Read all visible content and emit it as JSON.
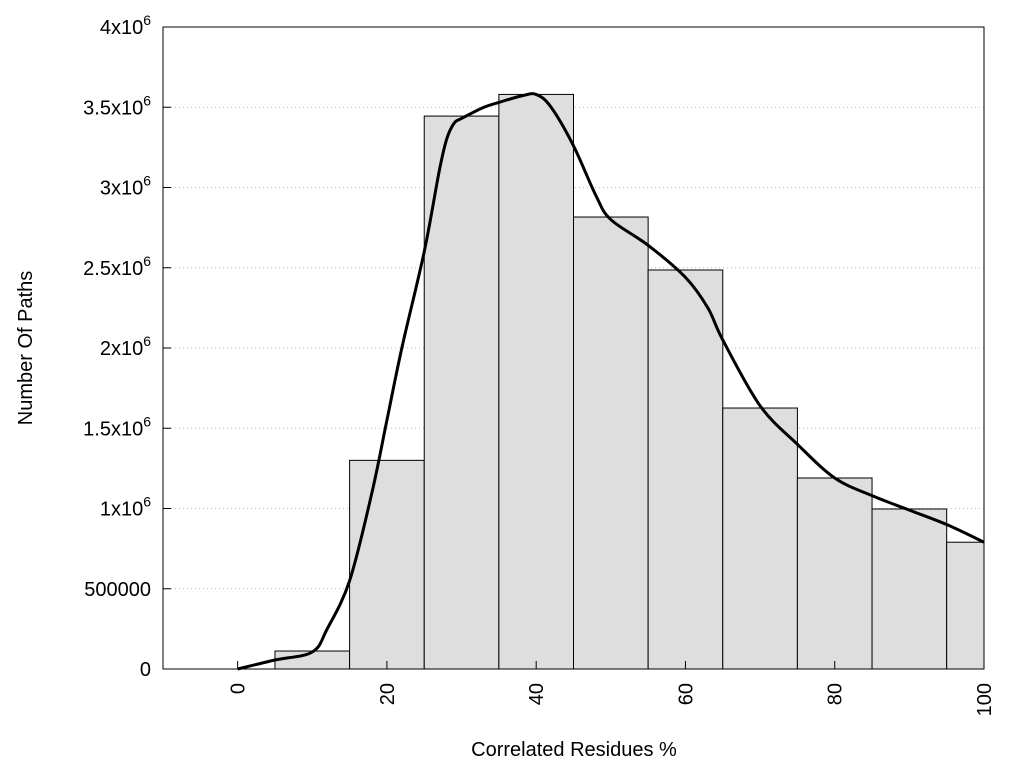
{
  "chart_data": {
    "type": "bar",
    "title": "",
    "xlabel": "Correlated Residues %",
    "ylabel": "Number Of Paths",
    "xlim": [
      -10,
      100
    ],
    "ylim": [
      0,
      4000000
    ],
    "grid": "horizontal dotted",
    "x_ticks": [
      0,
      20,
      40,
      60,
      80,
      100
    ],
    "x_tick_labels": [
      "0",
      "20",
      "40",
      "60",
      "80",
      "100"
    ],
    "y_ticks": [
      0,
      500000,
      1000000,
      1500000,
      2000000,
      2500000,
      3000000,
      3500000,
      4000000
    ],
    "y_tick_labels": [
      {
        "base": "0",
        "exp": ""
      },
      {
        "base": "500000",
        "exp": ""
      },
      {
        "base": "1x10",
        "exp": "6"
      },
      {
        "base": "1.5x10",
        "exp": "6"
      },
      {
        "base": "2x10",
        "exp": "6"
      },
      {
        "base": "2.5x10",
        "exp": "6"
      },
      {
        "base": "3x10",
        "exp": "6"
      },
      {
        "base": "3.5x10",
        "exp": "6"
      },
      {
        "base": "4x10",
        "exp": "6"
      }
    ],
    "bin_width": 10,
    "bars": {
      "centers": [
        10,
        20,
        30,
        40,
        50,
        60,
        70,
        80,
        90,
        100
      ],
      "values": [
        112000,
        1300000,
        3445000,
        3580000,
        2816000,
        2486000,
        1626000,
        1190000,
        997000,
        790000
      ],
      "fill": "#dedede",
      "stroke": "#000000"
    },
    "curve": {
      "x": [
        0,
        5,
        10,
        12,
        15,
        18,
        20,
        22,
        25,
        27,
        28,
        29,
        30,
        33,
        35,
        38,
        40,
        42,
        45,
        48,
        50,
        55,
        60,
        63,
        65,
        70,
        75,
        80,
        85,
        90,
        95,
        100
      ],
      "y": [
        0,
        56000,
        106000,
        250000,
        550000,
        1100000,
        1550000,
        2000000,
        2600000,
        3100000,
        3300000,
        3400000,
        3430000,
        3500000,
        3530000,
        3570000,
        3580000,
        3500000,
        3260000,
        2950000,
        2800000,
        2640000,
        2440000,
        2250000,
        2050000,
        1640000,
        1400000,
        1190000,
        1080000,
        990000,
        900000,
        790000
      ],
      "color": "#000000"
    }
  }
}
